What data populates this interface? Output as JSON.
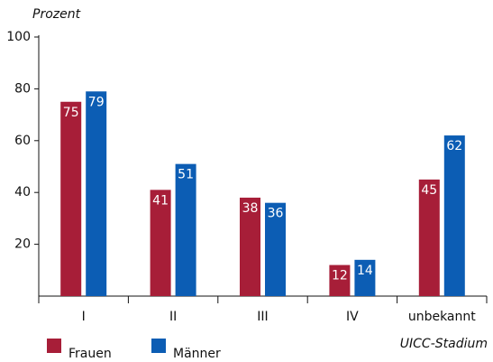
{
  "chart_data": {
    "type": "bar",
    "y_label": "Prozent",
    "x_label": "UICC-Stadium",
    "categories": [
      "I",
      "II",
      "III",
      "IV",
      "unbekannt"
    ],
    "series": [
      {
        "name": "Frauen",
        "color": "#a71e38",
        "values": [
          75,
          41,
          38,
          12,
          45
        ]
      },
      {
        "name": "Männer",
        "color": "#0c5db4",
        "values": [
          79,
          51,
          36,
          14,
          62
        ]
      }
    ],
    "ylim": [
      0,
      100
    ],
    "yticks": [
      20,
      40,
      60,
      80,
      100
    ],
    "legend": "bottom-left"
  }
}
